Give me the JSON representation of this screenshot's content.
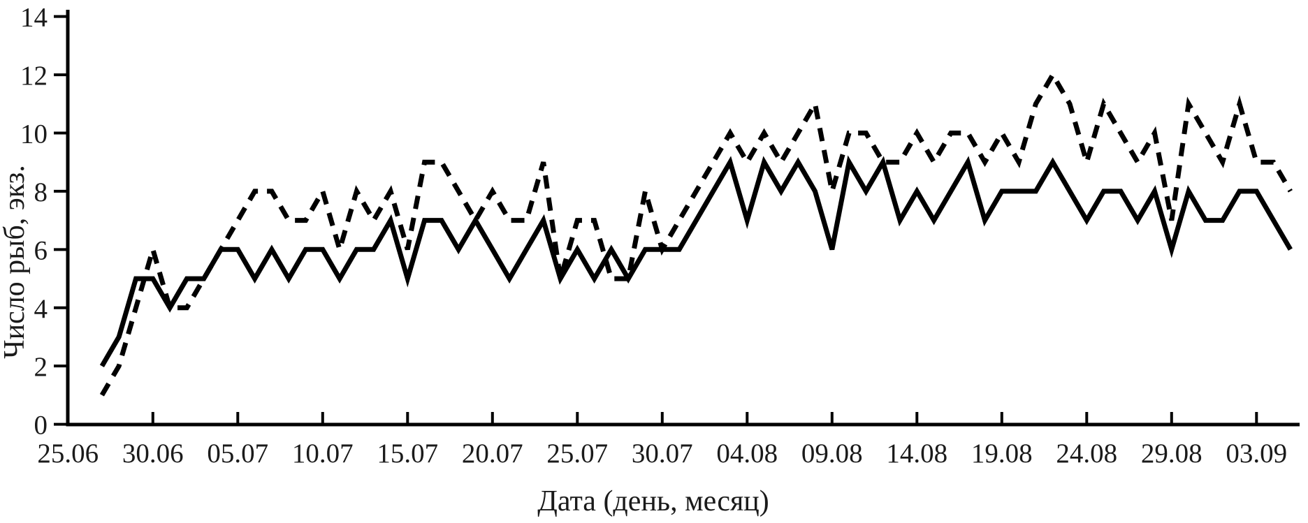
{
  "page": {
    "background": "#ffffff",
    "foreground": "#000000"
  },
  "chart_data": {
    "type": "line",
    "title": "",
    "xlabel": "Дата (день, месяц)",
    "ylabel": "Число рыб, экз.",
    "ylim": [
      0,
      14
    ],
    "yticks": [
      0,
      2,
      4,
      6,
      8,
      10,
      12,
      14
    ],
    "grid": false,
    "legend_position": "none",
    "line_color": "#000000",
    "x_tick_every": 5,
    "x_tick_labels": [
      "25.06",
      "30.06",
      "05.07",
      "10.07",
      "15.07",
      "20.07",
      "25.07",
      "30.07",
      "04.08",
      "09.08",
      "14.08",
      "19.08",
      "24.08",
      "29.08",
      "03.09"
    ],
    "x_dates": [
      "25.06",
      "26.06",
      "27.06",
      "28.06",
      "29.06",
      "30.06",
      "01.07",
      "02.07",
      "03.07",
      "04.07",
      "05.07",
      "06.07",
      "07.07",
      "08.07",
      "09.07",
      "10.07",
      "11.07",
      "12.07",
      "13.07",
      "14.07",
      "15.07",
      "16.07",
      "17.07",
      "18.07",
      "19.07",
      "20.07",
      "21.07",
      "22.07",
      "23.07",
      "24.07",
      "25.07",
      "26.07",
      "27.07",
      "28.07",
      "29.07",
      "30.07",
      "31.07",
      "01.08",
      "02.08",
      "03.08",
      "04.08",
      "05.08",
      "06.08",
      "07.08",
      "08.08",
      "09.08",
      "10.08",
      "11.08",
      "12.08",
      "13.08",
      "14.08",
      "15.08",
      "16.08",
      "17.08",
      "18.08",
      "19.08",
      "20.08",
      "21.08",
      "22.08",
      "23.08",
      "24.08",
      "25.08",
      "26.08",
      "27.08",
      "28.08",
      "29.08",
      "30.08",
      "31.08",
      "01.09",
      "02.09",
      "03.09",
      "04.09",
      "05.09"
    ],
    "series": [
      {
        "name": "solid",
        "style": "solid",
        "start_date": "27.06",
        "start_index": 2,
        "values": [
          2,
          3,
          5,
          5,
          4,
          5,
          5,
          6,
          6,
          5,
          6,
          5,
          6,
          6,
          5,
          6,
          6,
          7,
          5,
          7,
          7,
          6,
          7,
          6,
          5,
          6,
          7,
          5,
          6,
          5,
          6,
          5,
          6,
          6,
          6,
          7,
          8,
          9,
          7,
          9,
          8,
          9,
          8,
          6,
          9,
          8,
          9,
          7,
          8,
          7,
          8,
          9,
          7,
          8,
          8,
          8,
          9,
          8,
          7,
          8,
          8,
          7,
          8,
          6,
          8,
          7,
          7,
          8,
          8,
          7,
          6
        ]
      },
      {
        "name": "dashed",
        "style": "dashed",
        "start_date": "27.06",
        "start_index": 2,
        "values": [
          1,
          2,
          4,
          6,
          4,
          4,
          5,
          6,
          7,
          8,
          8,
          7,
          7,
          8,
          6,
          8,
          7,
          8,
          6,
          9,
          9,
          8,
          7,
          8,
          7,
          7,
          9,
          5,
          7,
          7,
          5,
          5,
          8,
          6,
          7,
          8,
          9,
          10,
          9,
          10,
          9,
          10,
          11,
          8,
          10,
          10,
          9,
          9,
          10,
          9,
          10,
          10,
          9,
          10,
          9,
          11,
          12,
          11,
          9,
          11,
          10,
          9,
          10,
          7,
          11,
          10,
          9,
          11,
          9,
          9,
          8
        ]
      }
    ]
  }
}
